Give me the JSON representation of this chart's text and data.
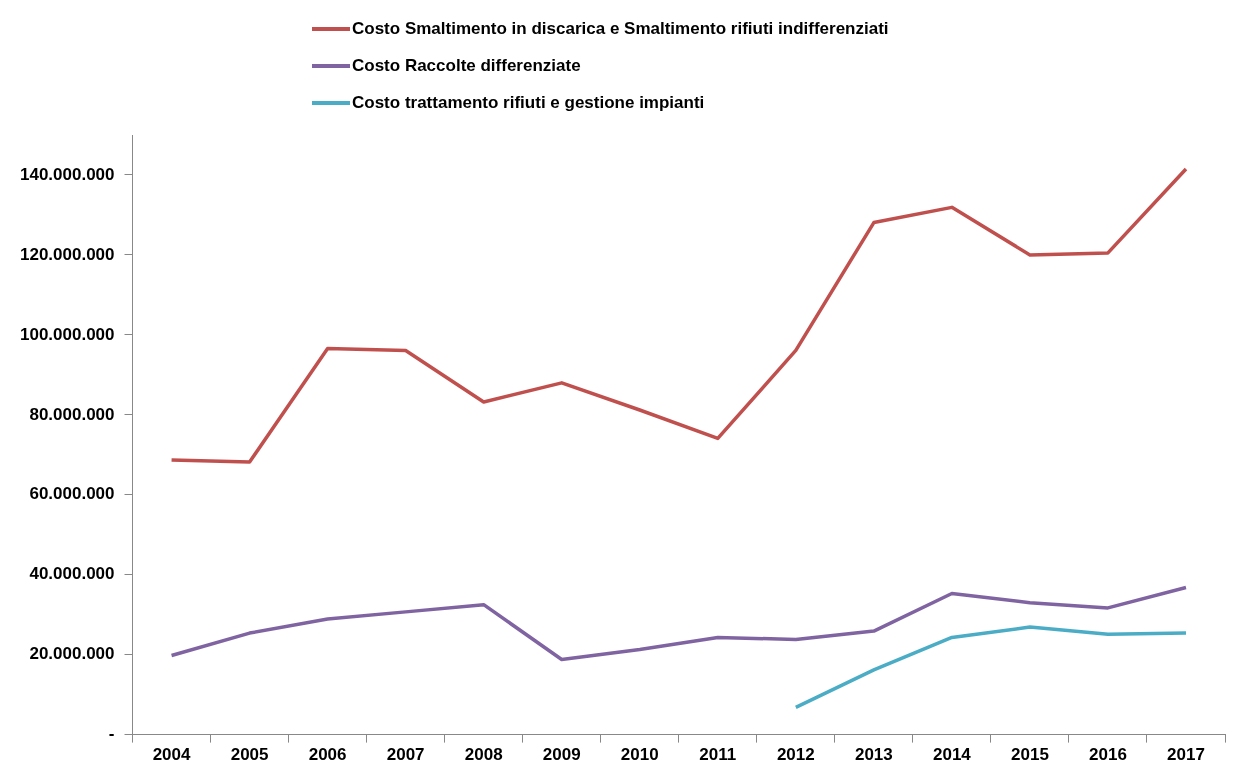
{
  "chart_data": {
    "type": "line",
    "categories": [
      "2004",
      "2005",
      "2006",
      "2007",
      "2008",
      "2009",
      "2010",
      "2011",
      "2012",
      "2013",
      "2014",
      "2015",
      "2016",
      "2017"
    ],
    "series": [
      {
        "name": "Costo Smaltimento in discarica e Smaltimento rifiuti indifferenziati",
        "color": "#c0504d",
        "values": [
          68700000,
          68200000,
          96600000,
          96100000,
          83200000,
          88000000,
          81200000,
          74100000,
          96100000,
          128100000,
          131900000,
          120000000,
          120500000,
          141500000
        ]
      },
      {
        "name": "Costo Raccolte differenziate",
        "color": "#8064a2",
        "values": [
          19800000,
          25400000,
          28900000,
          30700000,
          32500000,
          18800000,
          21300000,
          24300000,
          23800000,
          25900000,
          35300000,
          33000000,
          31700000,
          36800000
        ]
      },
      {
        "name": "Costo trattamento rifiuti e gestione impianti",
        "color": "#4bacc6",
        "values": [
          null,
          null,
          null,
          null,
          null,
          null,
          null,
          null,
          6800000,
          16200000,
          24300000,
          26900000,
          25100000,
          25400000
        ]
      }
    ],
    "ylim": [
      0,
      150000000
    ],
    "yticks": [
      {
        "value": 0,
        "label": "-"
      },
      {
        "value": 20000000,
        "label": "20.000.000"
      },
      {
        "value": 40000000,
        "label": "40.000.000"
      },
      {
        "value": 60000000,
        "label": "60.000.000"
      },
      {
        "value": 80000000,
        "label": "80.000.000"
      },
      {
        "value": 100000000,
        "label": "100.000.000"
      },
      {
        "value": 120000000,
        "label": "120.000.000"
      },
      {
        "value": 140000000,
        "label": "140.000.000"
      }
    ],
    "grid": false,
    "legend": "top",
    "marker": "none",
    "line_style": "solid"
  }
}
